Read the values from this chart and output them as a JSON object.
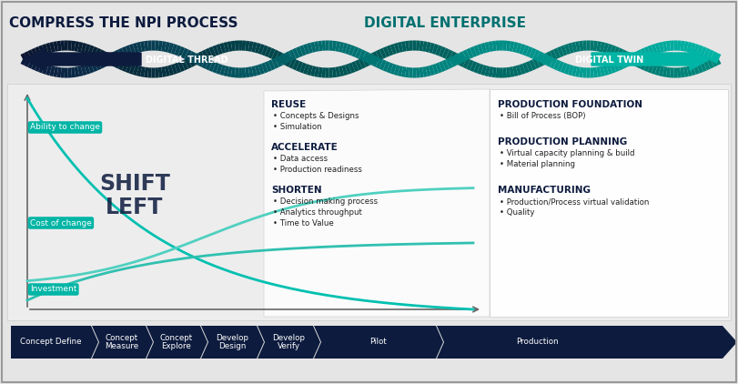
{
  "bg_color": "#e5e5e5",
  "title_left": "COMPRESS THE NPI PROCESS",
  "title_right": "DIGITAL ENTERPRISE",
  "title_color": "#0d1b3e",
  "title_right_color": "#007070",
  "digital_thread_text": "DIGITAL THREAD",
  "digital_twin_text": "DIGITAL TWIN",
  "shift_left_text": "SHIFT\nLEFT",
  "labels": {
    "ability": "Ability to change",
    "cost": "Cost of change",
    "investment": "Investment"
  },
  "reuse_title": "REUSE",
  "reuse_bullets": [
    "Concepts & Designs",
    "Simulation"
  ],
  "accelerate_title": "ACCELERATE",
  "accelerate_bullets": [
    "Data access",
    "Production readiness"
  ],
  "shorten_title": "SHORTEN",
  "shorten_bullets": [
    "Decision making process",
    "Analytics throughput",
    "Time to Value"
  ],
  "prod_foundation_title": "PRODUCTION FOUNDATION",
  "prod_foundation_bullets": [
    "Bill of Process (BOP)"
  ],
  "prod_planning_title": "PRODUCTION PLANNING",
  "prod_planning_bullets": [
    "Virtual capacity planning & build",
    "Material planning"
  ],
  "manufacturing_title": "MANUFACTURING",
  "manufacturing_bullets": [
    "Production/Process virtual validation",
    "Quality"
  ],
  "process_steps": [
    "Concept Define",
    "Concept\nMeasure",
    "Concept\nExplore",
    "Develop\nDesign",
    "Develop\nVerify",
    "Pilot",
    "Production"
  ],
  "navy": "#0d1b3e",
  "teal_color": "#00b5a5",
  "dark_teal": "#007070",
  "mid_teal": "#008888",
  "label_bg": "#00b5a5",
  "curve_color1": "#00c0b0",
  "curve_color2": "#50d0c0",
  "curve_color3": "#30c0b0"
}
